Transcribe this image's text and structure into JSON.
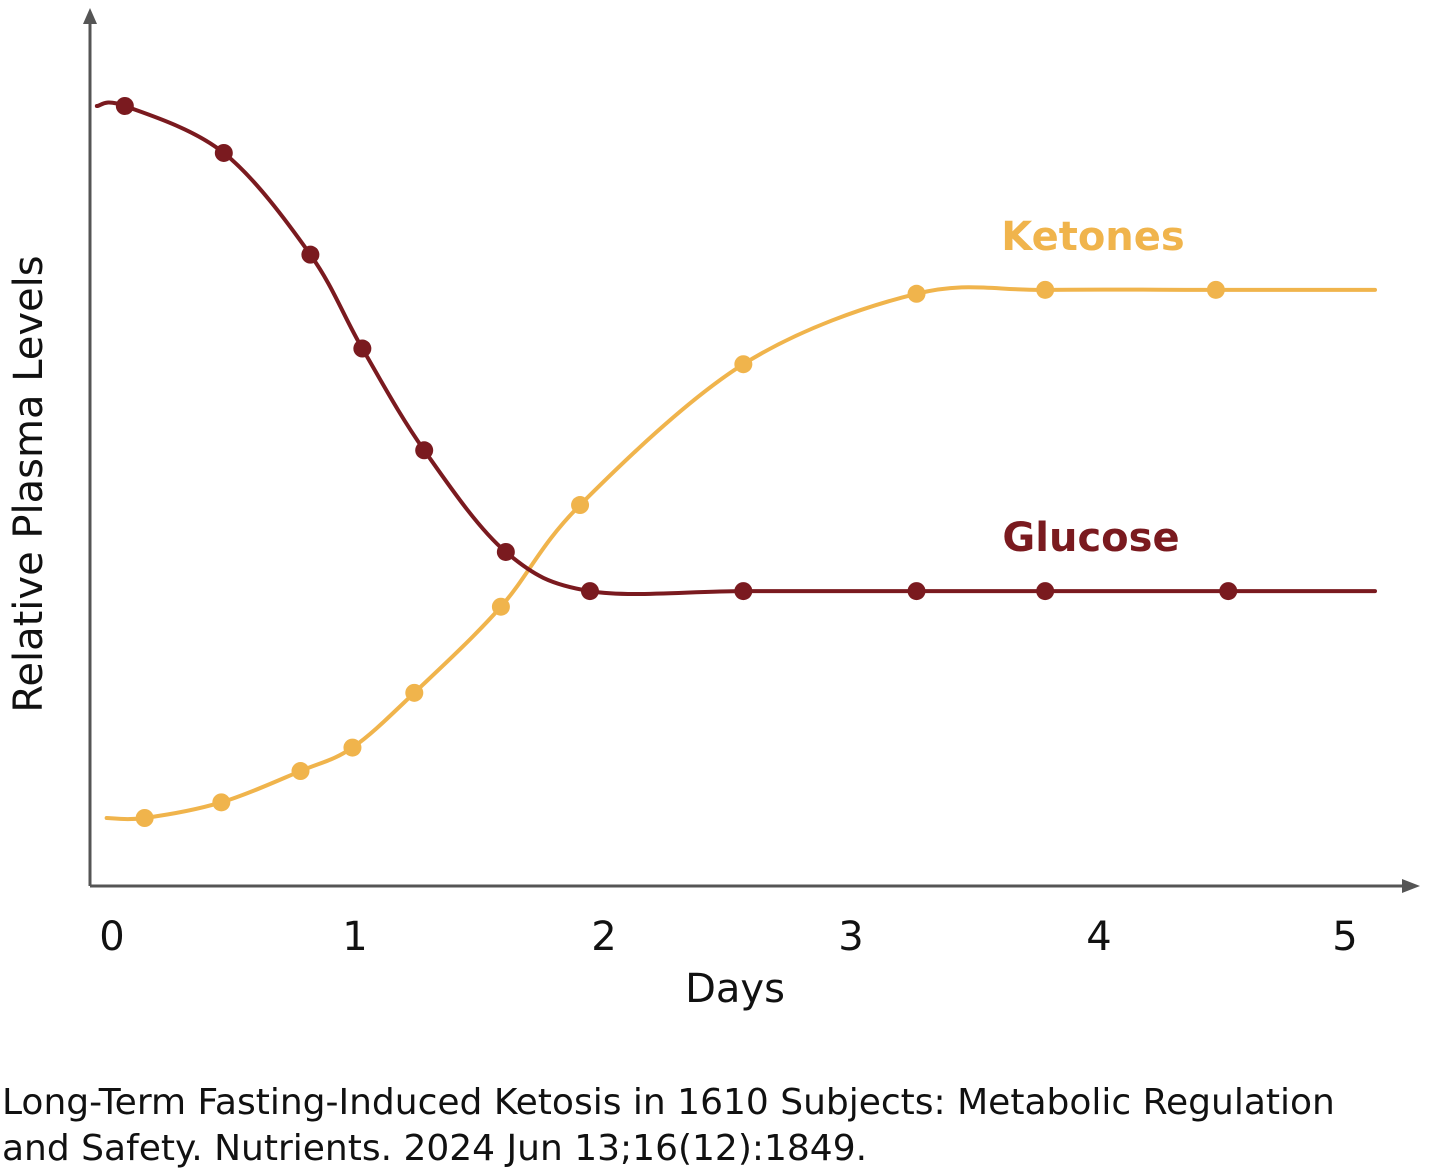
{
  "chart_data": {
    "type": "line",
    "xlabel": "Days",
    "ylabel": "Relative Plasma Levels",
    "xlim": [
      0,
      5
    ],
    "ylim": [
      0,
      1
    ],
    "x_ticks": [
      "0",
      "1",
      "2",
      "3",
      "4",
      "5"
    ],
    "y_ticks_shown": false,
    "grid": false,
    "legend": "inline labels at right",
    "series": [
      {
        "name": "Ketones",
        "color": "#f0b44c",
        "points": [
          {
            "x": 0.14,
            "y": 0.09
          },
          {
            "x": 0.45,
            "y": 0.11
          },
          {
            "x": 0.77,
            "y": 0.15
          },
          {
            "x": 0.98,
            "y": 0.18
          },
          {
            "x": 1.23,
            "y": 0.25
          },
          {
            "x": 1.58,
            "y": 0.36
          },
          {
            "x": 1.9,
            "y": 0.49
          },
          {
            "x": 2.56,
            "y": 0.67
          },
          {
            "x": 3.26,
            "y": 0.76
          },
          {
            "x": 3.78,
            "y": 0.765
          },
          {
            "x": 4.47,
            "y": 0.765
          }
        ]
      },
      {
        "name": "Glucose",
        "color": "#7a1a1f",
        "points": [
          {
            "x": 0.06,
            "y": 1.0
          },
          {
            "x": 0.46,
            "y": 0.94
          },
          {
            "x": 0.81,
            "y": 0.81
          },
          {
            "x": 1.02,
            "y": 0.69
          },
          {
            "x": 1.27,
            "y": 0.56
          },
          {
            "x": 1.6,
            "y": 0.43
          },
          {
            "x": 1.94,
            "y": 0.38
          },
          {
            "x": 2.56,
            "y": 0.38
          },
          {
            "x": 3.26,
            "y": 0.38
          },
          {
            "x": 3.78,
            "y": 0.38
          },
          {
            "x": 4.52,
            "y": 0.38
          }
        ]
      }
    ]
  },
  "citation": {
    "line1": "Long-Term Fasting-Induced Ketosis in 1610 Subjects: Metabolic Regulation",
    "line2": "and Safety. Nutrients. 2024 Jun 13;16(12):1849."
  }
}
